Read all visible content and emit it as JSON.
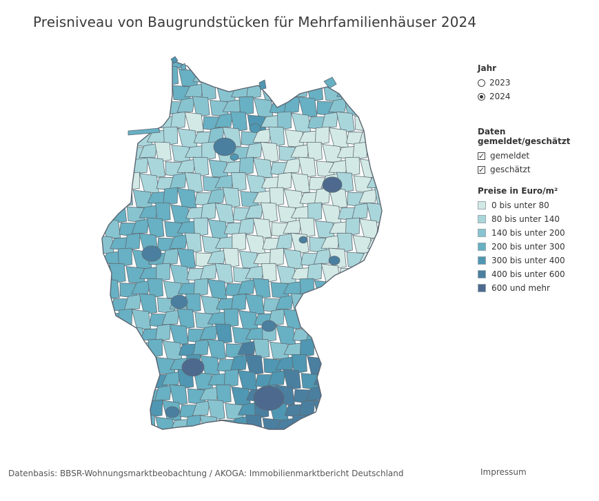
{
  "title": "Preisniveau von Baugrundstücken für Mehrfamilienhäuser 2024",
  "year_filter": {
    "label": "Jahr",
    "options": [
      {
        "label": "2023",
        "selected": false
      },
      {
        "label": "2024",
        "selected": true
      }
    ]
  },
  "data_filter": {
    "label": "Daten gemeldet/geschätzt",
    "options": [
      {
        "label": "gemeldet",
        "checked": true
      },
      {
        "label": "geschätzt",
        "checked": true
      }
    ]
  },
  "legend": {
    "label": "Preise in Euro/m²",
    "items": [
      {
        "label": "0 bis unter 80",
        "color": "#d3e9e5"
      },
      {
        "label": "80 bis unter 140",
        "color": "#a9d6db"
      },
      {
        "label": "140 bis unter 200",
        "color": "#88c4d0"
      },
      {
        "label": "200 bis unter 300",
        "color": "#68b0c3"
      },
      {
        "label": "300 bis unter 400",
        "color": "#4f97b2"
      },
      {
        "label": "400 bis unter 600",
        "color": "#4a7fa0"
      },
      {
        "label": "600 und mehr",
        "color": "#4d6a8e"
      }
    ]
  },
  "footer": {
    "source": "Datenbasis: BBSR-Wohnungsmarktbeobachtung / AKOGA: Immobilienmarktbericht Deutschland",
    "impressum": "Impressum"
  }
}
